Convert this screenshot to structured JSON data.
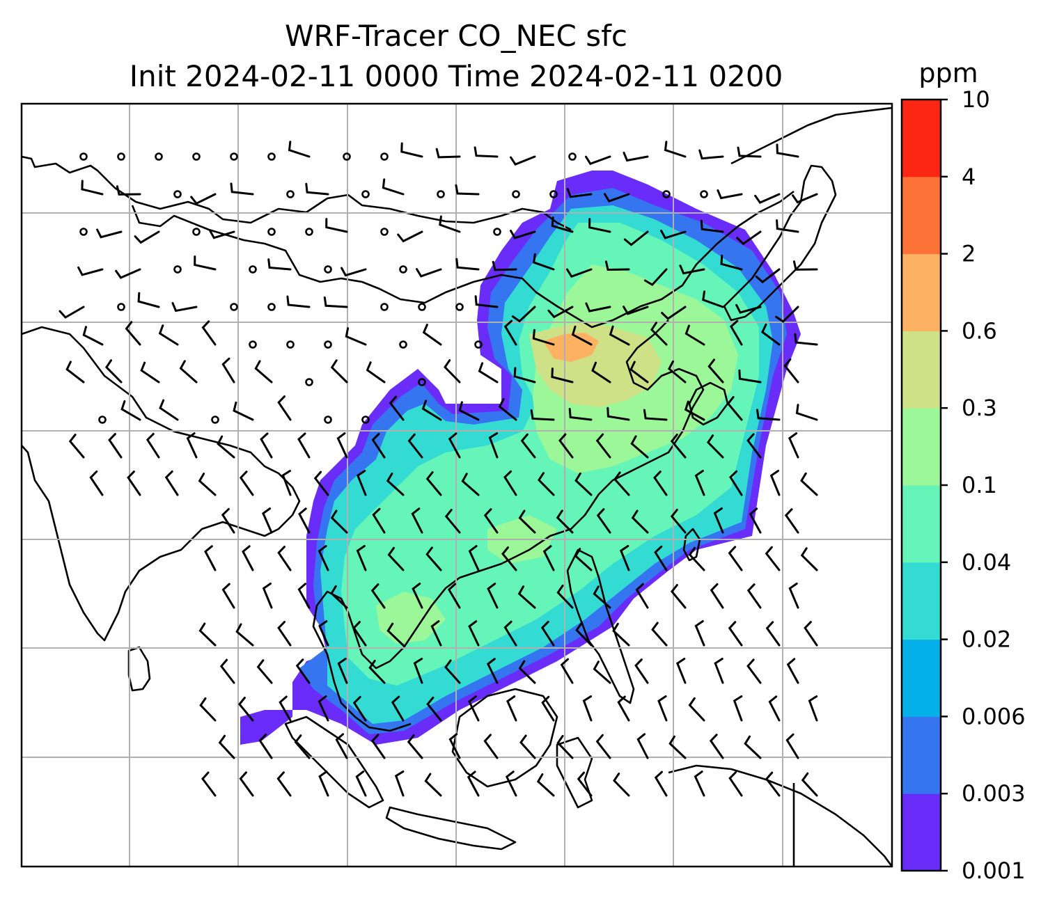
{
  "title": {
    "line1": "WRF-Tracer CO_NEC sfc",
    "line2": "Init 2024-02-11 0000 Time 2024-02-11 0200"
  },
  "colorbar": {
    "unit": "ppm",
    "levels": [
      "0.001",
      "0.003",
      "0.006",
      "0.02",
      "0.04",
      "0.1",
      "0.3",
      "0.6",
      "2",
      "4",
      "10"
    ],
    "colors": [
      "#6a2cf8",
      "#3576f0",
      "#06b0e8",
      "#33dbd3",
      "#66f5b8",
      "#9cf799",
      "#cfe187",
      "#fcb262",
      "#fd7236",
      "#fb2614"
    ]
  },
  "map": {
    "field": "CO_NEC surface concentration",
    "wind_barbs": true,
    "gridlines": true
  }
}
